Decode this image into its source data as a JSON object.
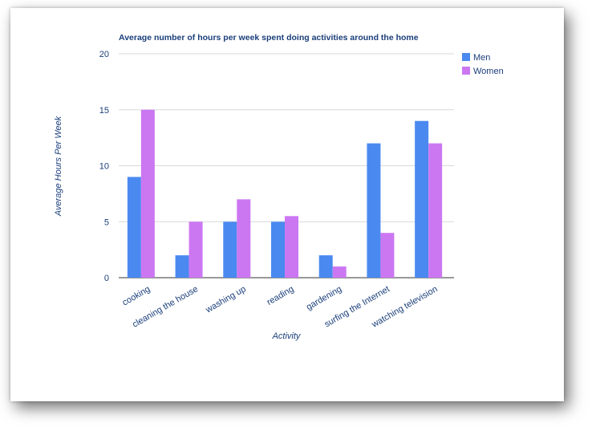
{
  "chart_data": {
    "type": "bar",
    "title": "Average number of hours per week spent doing activities around the home",
    "xlabel": "Activity",
    "ylabel": "Average Hours Per Week",
    "ylim": [
      0,
      20
    ],
    "yticks": [
      0,
      5,
      10,
      15,
      20
    ],
    "grid": true,
    "legend_position": "top-right",
    "categories": [
      "cooking",
      "cleaning the house",
      "washing up",
      "reading",
      "gardening",
      "surfing the Internet",
      "watching television"
    ],
    "series": [
      {
        "name": "Men",
        "color": "#4a8af0",
        "values": [
          9,
          2,
          5,
          5,
          2,
          12,
          14
        ]
      },
      {
        "name": "Women",
        "color": "#cc77f2",
        "values": [
          15,
          5,
          7,
          5.5,
          1,
          4,
          12
        ]
      }
    ]
  }
}
